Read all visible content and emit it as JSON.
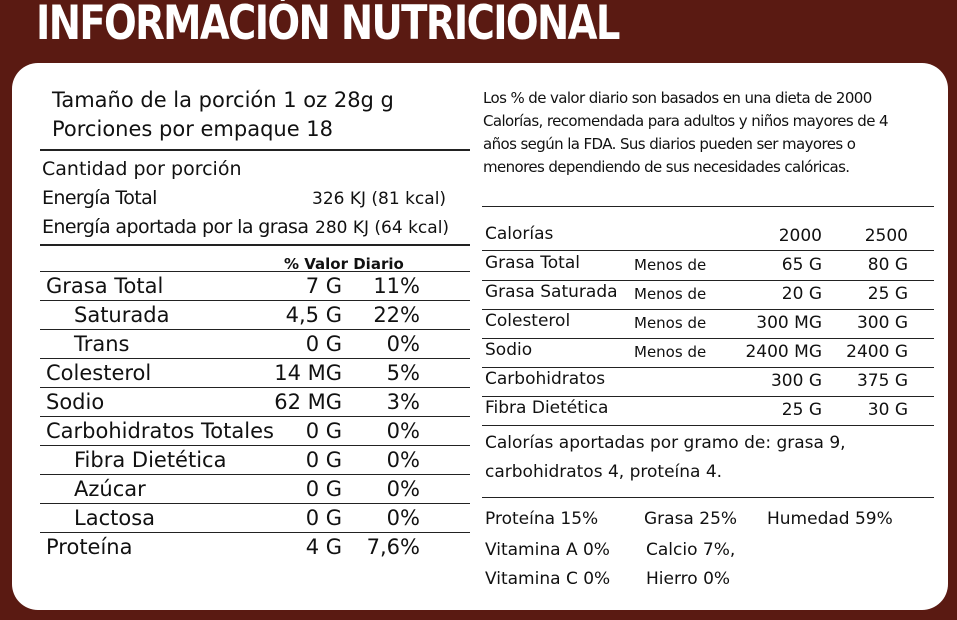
{
  "title": "INFORMACIÓN NUTRICIONAL",
  "serving": {
    "size": "Tamaño de la porción 1 oz 28g g",
    "per_package": "Porciones por empaque 18"
  },
  "amount_per_serving": "Cantidad por porción",
  "energy": [
    {
      "label": "Energía Total",
      "value": "326 KJ (81 kcal)"
    },
    {
      "label": "Energía aportada por la grasa",
      "value": "280 KJ (64 kcal)"
    }
  ],
  "dv_header": "% Valor Diario",
  "nutrients": [
    {
      "name": "Grasa Total",
      "amount": "7 G",
      "dv": "11%",
      "indent": false
    },
    {
      "name": "Saturada",
      "amount": "4,5 G",
      "dv": "22%",
      "indent": true
    },
    {
      "name": "Trans",
      "amount": "0 G",
      "dv": "0%",
      "indent": true
    },
    {
      "name": "Colesterol",
      "amount": "14 MG",
      "dv": "5%",
      "indent": false
    },
    {
      "name": "Sodio",
      "amount": "62 MG",
      "dv": "3%",
      "indent": false
    },
    {
      "name": "Carbohidratos Totales",
      "amount": "0 G",
      "dv": "0%",
      "indent": false
    },
    {
      "name": "Fibra Dietética",
      "amount": "0 G",
      "dv": "0%",
      "indent": true
    },
    {
      "name": "Azúcar",
      "amount": "0 G",
      "dv": "0%",
      "indent": true
    },
    {
      "name": "Lactosa",
      "amount": "0 G",
      "dv": "0%",
      "indent": true
    },
    {
      "name": "Proteína",
      "amount": "4 G",
      "dv": "7,6%",
      "indent": false
    }
  ],
  "footnote_lines": [
    "Los % de valor diario son basados en una dieta de 2000",
    "Calorías, recomendada para adultos y niños mayores de 4",
    "años según la FDA. Sus diarios pueden ser mayores o",
    "menores dependiendo de sus necesidades calóricas."
  ],
  "daily_table": {
    "header": {
      "label": "Calorías",
      "c1": "2000",
      "c2": "2500"
    },
    "rows": [
      {
        "label": "Grasa Total",
        "qual": "Menos de",
        "c1": "65 G",
        "c2": "80 G"
      },
      {
        "label": "Grasa Saturada",
        "qual": "Menos de",
        "c1": "20 G",
        "c2": "25 G"
      },
      {
        "label": "Colesterol",
        "qual": "Menos de",
        "c1": "300 MG",
        "c2": "300 G"
      },
      {
        "label": "Sodio",
        "qual": "Menos de",
        "c1": "2400 MG",
        "c2": "2400 G"
      },
      {
        "label": "Carbohidratos",
        "qual": "",
        "c1": "300 G",
        "c2": "375 G"
      },
      {
        "label": "Fibra Dietética",
        "qual": "",
        "c1": "25 G",
        "c2": "30 G"
      }
    ]
  },
  "calories_per_gram": [
    "Calorías aportadas por gramo de: grasa 9,",
    "carbohidratos 4, proteína 4."
  ],
  "composition": {
    "protein": "Proteína 15%",
    "fat": "Grasa 25%",
    "moisture": "Humedad 59%",
    "vit_a": "Vitamina A 0%",
    "calcium": "Calcio 7%,",
    "vit_c": "Vitamina C 0%",
    "iron": "Hierro 0%"
  },
  "colors": {
    "background": "#5a1a12",
    "panel": "#ffffff",
    "text": "#111111"
  }
}
